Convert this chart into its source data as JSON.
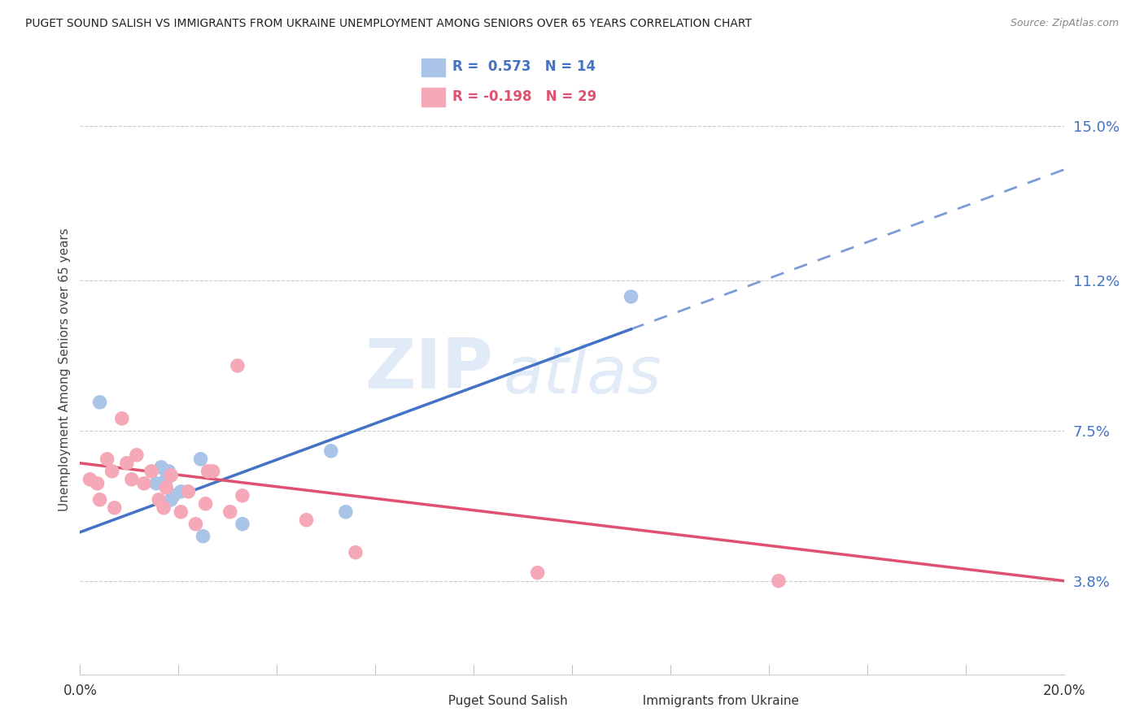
{
  "title": "PUGET SOUND SALISH VS IMMIGRANTS FROM UKRAINE UNEMPLOYMENT AMONG SENIORS OVER 65 YEARS CORRELATION CHART",
  "source": "Source: ZipAtlas.com",
  "ylabel": "Unemployment Among Seniors over 65 years",
  "y_ticks": [
    3.8,
    7.5,
    11.2,
    15.0
  ],
  "y_tick_labels": [
    "3.8%",
    "7.5%",
    "11.2%",
    "15.0%"
  ],
  "x_min": 0.0,
  "x_max": 20.0,
  "y_min": 1.5,
  "y_max": 16.5,
  "color_blue": "#aac4e8",
  "color_pink": "#f4a8b8",
  "color_blue_line": "#4472c4",
  "color_pink_line": "#e05070",
  "color_blue_text": "#4472c4",
  "color_pink_text": "#e05070",
  "watermark_zip": "ZIP",
  "watermark_atlas": "atlas",
  "blue_scatter_x": [
    0.4,
    1.55,
    1.65,
    1.75,
    1.8,
    1.85,
    1.9,
    2.05,
    2.45,
    2.5,
    3.3,
    5.1,
    5.4,
    11.2
  ],
  "blue_scatter_y": [
    8.2,
    6.2,
    6.6,
    6.3,
    6.5,
    5.8,
    5.9,
    6.0,
    6.8,
    4.9,
    5.2,
    7.0,
    5.5,
    10.8
  ],
  "pink_scatter_x": [
    0.2,
    0.35,
    0.4,
    0.55,
    0.65,
    0.7,
    0.85,
    0.95,
    1.05,
    1.15,
    1.3,
    1.45,
    1.6,
    1.7,
    1.75,
    1.85,
    2.05,
    2.2,
    2.35,
    2.55,
    2.6,
    2.7,
    3.05,
    3.2,
    3.3,
    4.6,
    5.6,
    9.3,
    14.2
  ],
  "pink_scatter_y": [
    6.3,
    6.2,
    5.8,
    6.8,
    6.5,
    5.6,
    7.8,
    6.7,
    6.3,
    6.9,
    6.2,
    6.5,
    5.8,
    5.6,
    6.1,
    6.4,
    5.5,
    6.0,
    5.2,
    5.7,
    6.5,
    6.5,
    5.5,
    9.1,
    5.9,
    5.3,
    4.5,
    4.0,
    3.8
  ],
  "blue_line_x_start": 0.0,
  "blue_line_x_solid_end": 11.2,
  "blue_line_x_end": 20.0,
  "pink_line_x_start": 0.0,
  "pink_line_x_end": 20.0
}
